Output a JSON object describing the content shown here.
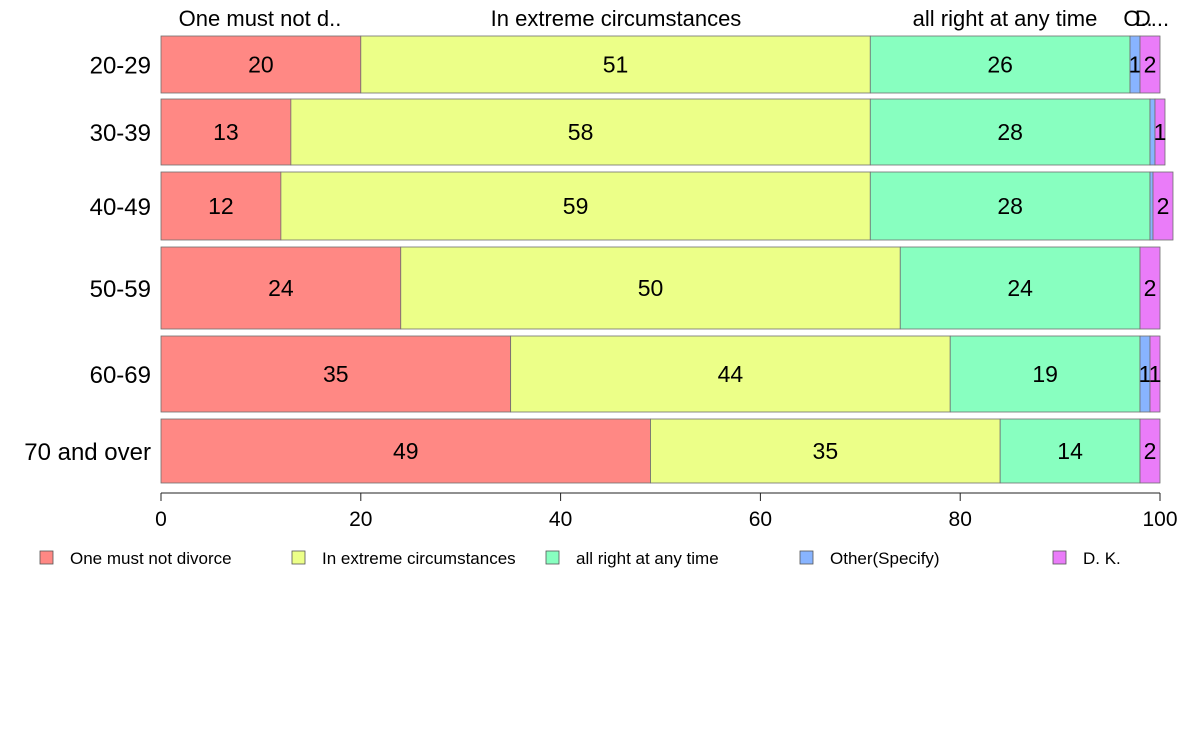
{
  "chart_data": {
    "type": "bar",
    "orientation": "horizontal",
    "stacked": true,
    "categories": [
      "20-29",
      "30-39",
      "40-49",
      "50-59",
      "60-69",
      "70 and over"
    ],
    "series": [
      {
        "name": "One must not divorce",
        "values": [
          20,
          13,
          12,
          24,
          35,
          49
        ],
        "color": "#ff8884"
      },
      {
        "name": "In extreme circumstances",
        "values": [
          51,
          58,
          59,
          50,
          44,
          35
        ],
        "color": "#ecff88"
      },
      {
        "name": "all right at any time",
        "values": [
          26,
          28,
          28,
          24,
          19,
          14
        ],
        "color": "#88ffc0"
      },
      {
        "name": "Other(Specify)",
        "values": [
          1,
          0.5,
          0.3,
          0,
          1,
          0
        ],
        "color": "#88b4ff"
      },
      {
        "name": "D. K.",
        "values": [
          2,
          1,
          2,
          2,
          1,
          2
        ],
        "color": "#ea7cf9"
      }
    ],
    "data_labels": [
      [
        "20",
        "51",
        "26",
        "1",
        "2"
      ],
      [
        "13",
        "58",
        "28",
        "",
        "1"
      ],
      [
        "12",
        "59",
        "28",
        "",
        "2"
      ],
      [
        "24",
        "50",
        "24",
        "",
        "2"
      ],
      [
        "35",
        "44",
        "19",
        "1",
        "1"
      ],
      [
        "49",
        "35",
        "14",
        "",
        "2"
      ]
    ],
    "top_labels": [
      "One must not d..",
      "In extreme circumstances",
      "all right at any time",
      "O..",
      "D..."
    ],
    "xlim": [
      0,
      100
    ],
    "xticks": [
      0,
      20,
      40,
      60,
      80,
      100
    ],
    "legend": [
      "One must not divorce",
      "In extreme circumstances",
      "all right at any time",
      "Other(Specify)",
      "D. K."
    ],
    "legend_position": "bottom",
    "grid": false
  }
}
